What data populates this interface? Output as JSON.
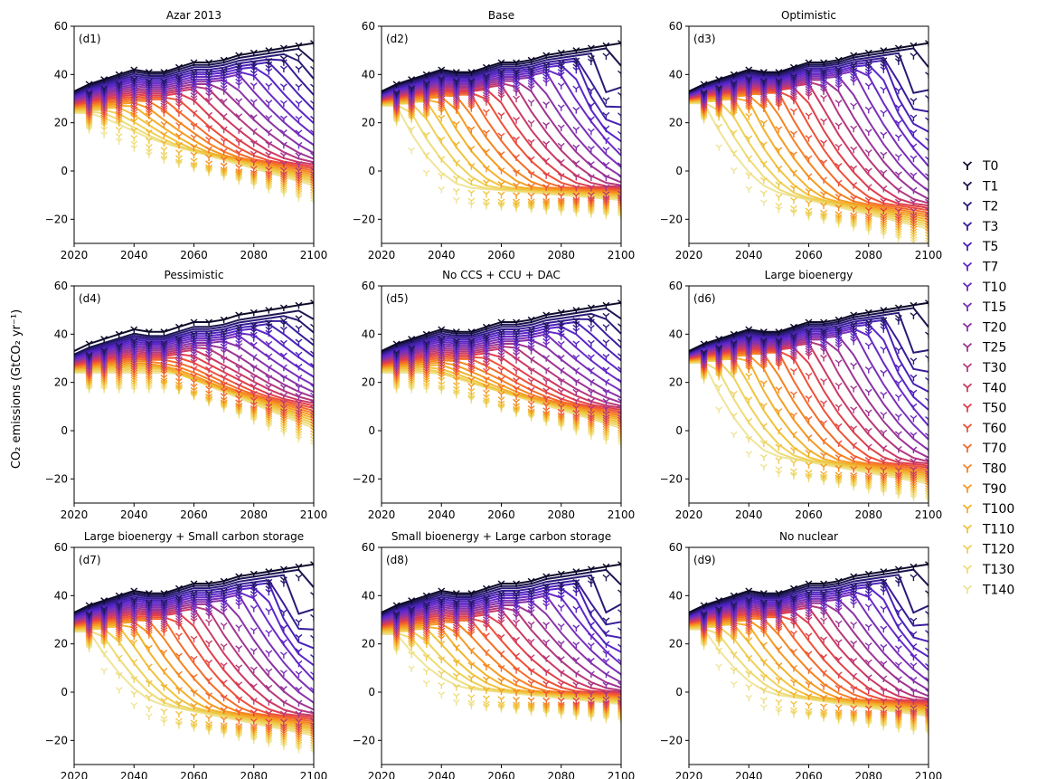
{
  "figure": {
    "ylabel": "CO₂ emissions (GtCO₂ yr⁻¹)"
  },
  "chart_data": {
    "type": "line",
    "x_ticks": [
      2020,
      2040,
      2060,
      2080,
      2100
    ],
    "y_ticks": [
      -20,
      0,
      20,
      40,
      60
    ],
    "xlim": [
      2020,
      2100
    ],
    "ylim": [
      -30,
      60
    ],
    "marker_years": [
      2025,
      2030,
      2035,
      2040,
      2045,
      2050,
      2055,
      2060,
      2065,
      2070,
      2075,
      2080,
      2085,
      2090,
      2095,
      2100
    ],
    "legend": {
      "placement": "right",
      "entries": [
        "T0",
        "T1",
        "T2",
        "T3",
        "T5",
        "T7",
        "T10",
        "T15",
        "T20",
        "T25",
        "T30",
        "T40",
        "T50",
        "T60",
        "T70",
        "T80",
        "T90",
        "T100",
        "T110",
        "T120",
        "T130",
        "T140"
      ],
      "colors": [
        "#0d0a29",
        "#1c1651",
        "#2a1a76",
        "#3a1e9a",
        "#4a22b8",
        "#5b26c9",
        "#6a2bc4",
        "#7a30b8",
        "#8a33a6",
        "#9e3592",
        "#b6387c",
        "#cc3a64",
        "#e0404b",
        "#ee5238",
        "#f46b2a",
        "#f58422",
        "#f59b22",
        "#f2b22e",
        "#f0c43e",
        "#eed15a",
        "#eedc78",
        "#efe49a"
      ]
    },
    "panels": [
      {
        "letter": "(d1)",
        "title": "Azar 2013",
        "start": [
          33,
          24
        ],
        "mid_low": 8,
        "end_low": -6,
        "dip": false,
        "peak_end": 53
      },
      {
        "letter": "(d2)",
        "title": "Base",
        "start": [
          33,
          27
        ],
        "mid_low": -8,
        "end_low": -12,
        "dip": true,
        "peak_end": 53
      },
      {
        "letter": "(d3)",
        "title": "Optimistic",
        "start": [
          33,
          28
        ],
        "mid_low": -12,
        "end_low": -24,
        "dip": true,
        "peak_end": 53
      },
      {
        "letter": "(d4)",
        "title": "Pessimistic",
        "start": [
          32,
          24
        ],
        "mid_low": 21,
        "end_low": 1,
        "dip": false,
        "peak_end": 53
      },
      {
        "letter": "(d5)",
        "title": "No CCS + CCU + DAC",
        "start": [
          33,
          24
        ],
        "mid_low": 16,
        "end_low": 1,
        "dip": false,
        "peak_end": 53
      },
      {
        "letter": "(d6)",
        "title": "Large bioenergy",
        "start": [
          33,
          28
        ],
        "mid_low": -13,
        "end_low": -22,
        "dip": true,
        "peak_end": 53
      },
      {
        "letter": "(d7)",
        "title": "Large bioenergy + Small carbon storage",
        "start": [
          33,
          25
        ],
        "mid_low": -8,
        "end_low": -18,
        "dip": true,
        "peak_end": 53
      },
      {
        "letter": "(d8)",
        "title": "Small bioenergy + Large carbon storage",
        "start": [
          33,
          24
        ],
        "mid_low": 0,
        "end_low": -5,
        "dip": true,
        "peak_end": 53
      },
      {
        "letter": "(d9)",
        "title": "No nuclear",
        "start": [
          33,
          26
        ],
        "mid_low": -3,
        "end_low": -10,
        "dip": true,
        "peak_end": 53
      }
    ]
  }
}
